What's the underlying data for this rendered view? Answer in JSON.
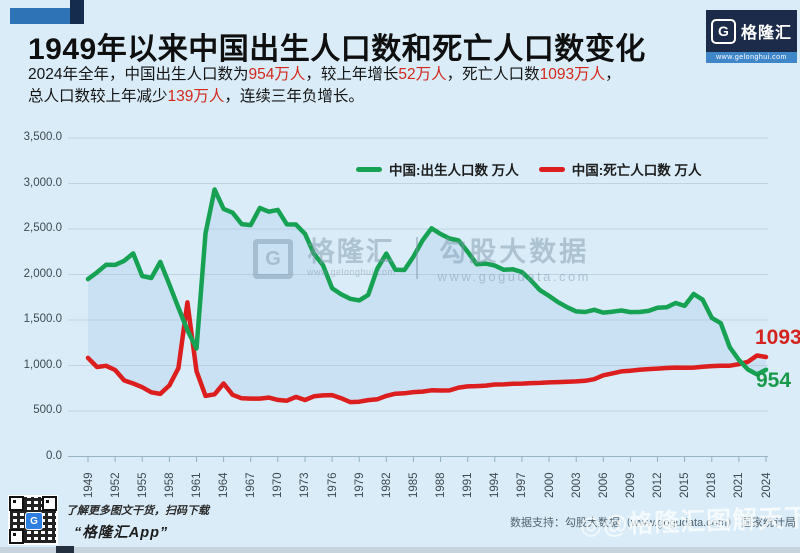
{
  "header": {
    "title": "1949年以来中国出生人口数和死亡人口数变化",
    "subtitle_lines": [
      [
        {
          "text": "2024年全年，中国出生人口数为",
          "highlight": false
        },
        {
          "text": "954万人",
          "highlight": true
        },
        {
          "text": "，较上年增长",
          "highlight": false
        },
        {
          "text": "52万人",
          "highlight": true
        },
        {
          "text": "，死亡人口数",
          "highlight": false
        },
        {
          "text": "1093万人",
          "highlight": true
        },
        {
          "text": "，",
          "highlight": false
        }
      ],
      [
        {
          "text": "总人口数较上年减少",
          "highlight": false
        },
        {
          "text": "139万人",
          "highlight": true
        },
        {
          "text": "，连续三年负增长。",
          "highlight": false
        }
      ]
    ],
    "highlight_color": "#d4281e"
  },
  "logo": {
    "g": "G",
    "name": "格隆汇",
    "url": "www.gelonghui.com"
  },
  "legend": [
    {
      "label": "中国:出生人口数 万人",
      "color": "#17a253"
    },
    {
      "label": "中国:死亡人口数 万人",
      "color": "#dc1e1e"
    }
  ],
  "chart_data": {
    "type": "line",
    "title": "1949年以来中国出生人口数和死亡人口数变化",
    "unit": "万人",
    "x": [
      1949,
      1950,
      1951,
      1952,
      1953,
      1954,
      1955,
      1956,
      1957,
      1958,
      1959,
      1960,
      1961,
      1962,
      1963,
      1964,
      1965,
      1966,
      1967,
      1968,
      1969,
      1970,
      1971,
      1972,
      1973,
      1974,
      1975,
      1976,
      1977,
      1978,
      1979,
      1980,
      1981,
      1982,
      1983,
      1984,
      1985,
      1986,
      1987,
      1988,
      1989,
      1990,
      1991,
      1992,
      1993,
      1994,
      1995,
      1996,
      1997,
      1998,
      1999,
      2000,
      2001,
      2002,
      2003,
      2004,
      2005,
      2006,
      2007,
      2008,
      2009,
      2010,
      2011,
      2012,
      2013,
      2014,
      2015,
      2016,
      2017,
      2018,
      2019,
      2020,
      2021,
      2022,
      2023,
      2024
    ],
    "series": [
      {
        "name": "中国:出生人口数 万人",
        "color": "#17a253",
        "values": [
          1950,
          2023,
          2107,
          2105,
          2151,
          2232,
          1984,
          1961,
          2138,
          1889,
          1635,
          1389,
          1187,
          2451,
          2934,
          2721,
          2679,
          2554,
          2543,
          2731,
          2690,
          2710,
          2551,
          2550,
          2447,
          2226,
          2102,
          1849,
          1783,
          1733,
          1715,
          1776,
          2064,
          2230,
          2052,
          2050,
          2196,
          2374,
          2508,
          2445,
          2396,
          2374,
          2250,
          2113,
          2120,
          2098,
          2052,
          2057,
          2028,
          1934,
          1827,
          1765,
          1696,
          1641,
          1594,
          1588,
          1612,
          1581,
          1591,
          1604,
          1587,
          1588,
          1600,
          1635,
          1640,
          1687,
          1655,
          1786,
          1723,
          1523,
          1465,
          1200,
          1062,
          956,
          902,
          954
        ]
      },
      {
        "name": "中国:死亡人口数 万人",
        "color": "#dc1e1e",
        "values": [
          1083,
          983,
          997,
          951,
          836,
          802,
          762,
          706,
          688,
          781,
          970,
          1693,
          939,
          666,
          684,
          802,
          678,
          640,
          636,
          636,
          647,
          622,
          613,
          655,
          621,
          661,
          671,
          675,
          641,
          598,
          602,
          620,
          629,
          666,
          690,
          695,
          708,
          713,
          728,
          725,
          726,
          757,
          770,
          774,
          779,
          791,
          792,
          799,
          801,
          807,
          809,
          814,
          818,
          821,
          825,
          832,
          849,
          892,
          913,
          935,
          943,
          953,
          960,
          966,
          972,
          977,
          975,
          977,
          986,
          993,
          998,
          998,
          1014,
          1041,
          1110,
          1093
        ]
      }
    ],
    "ylim": [
      0,
      3500
    ],
    "y_ticks": [
      {
        "value": 3500,
        "label": "3,500.0"
      },
      {
        "value": 3000,
        "label": "3,000.0"
      },
      {
        "value": 2500,
        "label": "2,500.0"
      },
      {
        "value": 2000,
        "label": "2,000.0"
      },
      {
        "value": 1500,
        "label": "1,500.0"
      },
      {
        "value": 1000,
        "label": "1,000.0"
      },
      {
        "value": 500,
        "label": "500.0"
      },
      {
        "value": 0,
        "label": "0.0"
      }
    ],
    "x_tick_years": [
      1949,
      1952,
      1955,
      1958,
      1961,
      1964,
      1967,
      1970,
      1973,
      1976,
      1979,
      1982,
      1985,
      1988,
      1991,
      1994,
      1997,
      2000,
      2003,
      2006,
      2009,
      2012,
      2015,
      2018,
      2021,
      2024
    ],
    "grid": true,
    "legend_position": "top-center",
    "area_fill_between_series": "#c9e1f3",
    "end_value_labels": {
      "death": "1093",
      "birth": "954"
    }
  },
  "watermark_center": {
    "g": "G",
    "brand": "格隆汇",
    "brand_url": "www.gelonghui.com",
    "partner": "勾股大数据",
    "partner_url": "www.gogudata.com"
  },
  "footer": {
    "qr_caption_line1": "了解更多图文干货，扫码下载",
    "qr_caption_line2": "“格隆汇App”",
    "data_support": "数据支持：勾股大数据（www.gogudata.com） 国家统计局",
    "watermark": "◎@格隆汇图解天下"
  },
  "colors": {
    "background": "#d9ecf7",
    "birth_line": "#17a253",
    "death_line": "#dc1e1e",
    "fill_between": "#c9e1f3",
    "gridline": "#a9c2d1",
    "axis_text": "#3f4a52"
  }
}
